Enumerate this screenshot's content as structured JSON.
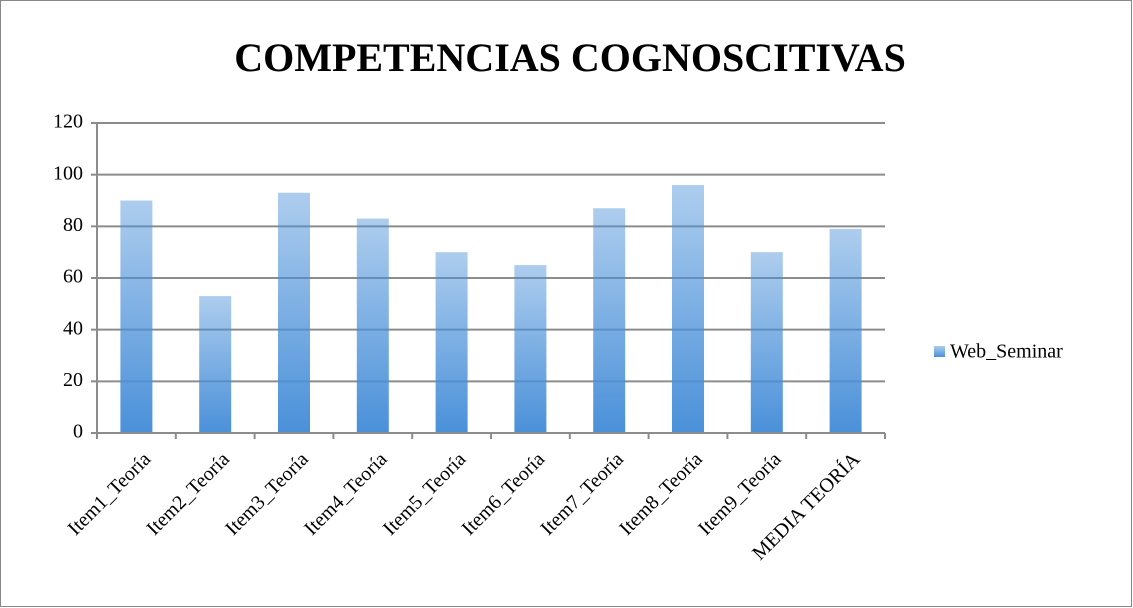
{
  "chart_data": {
    "type": "bar",
    "title": "COMPETENCIAS COGNOSCITIVAS",
    "categories": [
      "Item1_Teoría",
      "Item2_Teoría",
      "Item3_Teoría",
      "Item4_Teoría",
      "Item5_Teoría",
      "Item6_Teoría",
      "Item7_Teoría",
      "Item8_Teoría",
      "Item9_Teoría",
      "MEDIA TEORÍA"
    ],
    "series": [
      {
        "name": "Web_Seminar",
        "color": "#4a90d9",
        "values": [
          90,
          53,
          93,
          83,
          70,
          65,
          87,
          96,
          70,
          79
        ]
      }
    ],
    "ylim": [
      0,
      120
    ],
    "yticks": [
      0,
      20,
      40,
      60,
      80,
      100,
      120
    ],
    "grid": true,
    "legend": "right"
  }
}
